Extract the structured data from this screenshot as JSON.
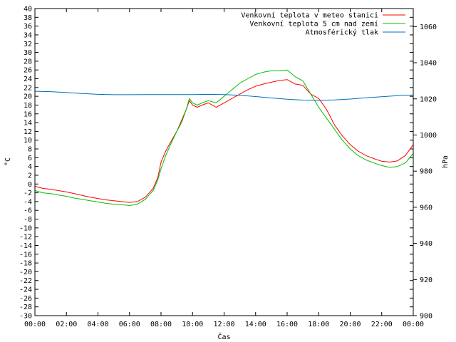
{
  "chart_data": {
    "type": "line",
    "xlabel": "Čas",
    "ylabel_left": "°C",
    "ylabel_right": "hPa",
    "x_ticks": [
      "00:00",
      "02:00",
      "04:00",
      "06:00",
      "08:00",
      "10:00",
      "12:00",
      "14:00",
      "16:00",
      "18:00",
      "20:00",
      "22:00",
      "00:00"
    ],
    "x_range_hours": [
      0,
      24
    ],
    "ylim_left": [
      -30,
      40
    ],
    "ylim_right": [
      900,
      1070
    ],
    "y_ticks_left": [
      40,
      38,
      36,
      34,
      32,
      30,
      28,
      26,
      24,
      22,
      20,
      18,
      16,
      14,
      12,
      10,
      8,
      6,
      4,
      2,
      0,
      -2,
      -4,
      -6,
      -8,
      -10,
      -12,
      -14,
      -16,
      -18,
      -20,
      -22,
      -24,
      -26,
      -28,
      -30
    ],
    "y_ticks_right": [
      1060,
      1040,
      1020,
      1000,
      980,
      960,
      940,
      920,
      900
    ],
    "legend_position": "top-right",
    "series": [
      {
        "name": "Venkovní teplota v meteo stanici",
        "color": "#ff0000",
        "axis": "left",
        "x": [
          0,
          0.5,
          1,
          1.5,
          2,
          2.5,
          3,
          3.5,
          4,
          4.5,
          5,
          5.5,
          6,
          6.5,
          7,
          7.5,
          7.8,
          8,
          8.3,
          8.6,
          9,
          9.3,
          9.6,
          9.8,
          10,
          10.3,
          10.6,
          11,
          11.5,
          12,
          12.5,
          13,
          13.5,
          14,
          14.5,
          15,
          15.5,
          16,
          16.5,
          17,
          17.5,
          18,
          18.5,
          19,
          19.5,
          20,
          20.5,
          21,
          21.5,
          22,
          22.5,
          23,
          23.5,
          24
        ],
        "y": [
          -0.5,
          -1,
          -1.2,
          -1.5,
          -1.8,
          -2.2,
          -2.6,
          -3,
          -3.3,
          -3.6,
          -3.8,
          -4,
          -4.2,
          -4,
          -3,
          -1,
          1.5,
          5,
          7.5,
          9.5,
          12,
          14.5,
          17,
          19,
          18,
          17.5,
          18,
          18.5,
          17.5,
          18.5,
          19.5,
          20.5,
          21.5,
          22.3,
          22.8,
          23.2,
          23.6,
          23.8,
          22.8,
          22.5,
          20.5,
          19.5,
          17,
          13.5,
          11,
          9,
          7.5,
          6.5,
          5.8,
          5.2,
          5,
          5.3,
          6.5,
          9
        ]
      },
      {
        "name": "Venkovní teplota 5 cm nad zemí",
        "color": "#00c000",
        "axis": "left",
        "x": [
          0,
          0.5,
          1,
          1.5,
          2,
          2.5,
          3,
          3.5,
          4,
          4.5,
          5,
          5.5,
          6,
          6.5,
          7,
          7.5,
          7.8,
          8,
          8.3,
          8.6,
          9,
          9.3,
          9.6,
          9.8,
          10,
          10.3,
          10.6,
          11,
          11.5,
          12,
          12.5,
          13,
          13.5,
          14,
          14.5,
          15,
          15.5,
          16,
          16.5,
          17,
          17.5,
          18,
          18.5,
          19,
          19.5,
          20,
          20.5,
          21,
          21.5,
          22,
          22.5,
          23,
          23.5,
          24
        ],
        "y": [
          -1.5,
          -2,
          -2.2,
          -2.5,
          -2.8,
          -3.2,
          -3.5,
          -3.8,
          -4.1,
          -4.4,
          -4.6,
          -4.7,
          -4.9,
          -4.6,
          -3.5,
          -1.5,
          1,
          3.5,
          6.5,
          9,
          12,
          14,
          17,
          19.5,
          18.5,
          18,
          18.5,
          19,
          18.5,
          20,
          21.5,
          23,
          24,
          25,
          25.5,
          25.8,
          25.8,
          26,
          24.5,
          23.5,
          20.5,
          17.5,
          15,
          12.5,
          10,
          8,
          6.5,
          5.5,
          4.8,
          4.2,
          3.8,
          4,
          4.8,
          7
        ]
      },
      {
        "name": "Atmosférický tlak",
        "color": "#0070c0",
        "axis": "right",
        "x": [
          0,
          1,
          2,
          3,
          4,
          5,
          6,
          7,
          8,
          9,
          10,
          11,
          12,
          13,
          14,
          15,
          16,
          17,
          18,
          19,
          20,
          21,
          22,
          23,
          24
        ],
        "y": [
          1024.2,
          1024,
          1023.5,
          1023,
          1022.5,
          1022.3,
          1022.3,
          1022.4,
          1022.4,
          1022.4,
          1022.4,
          1022.5,
          1022.4,
          1022,
          1021.3,
          1020.5,
          1019.8,
          1019.3,
          1019.2,
          1019.4,
          1019.9,
          1020.6,
          1021.2,
          1021.8,
          1022.1
        ]
      }
    ]
  }
}
